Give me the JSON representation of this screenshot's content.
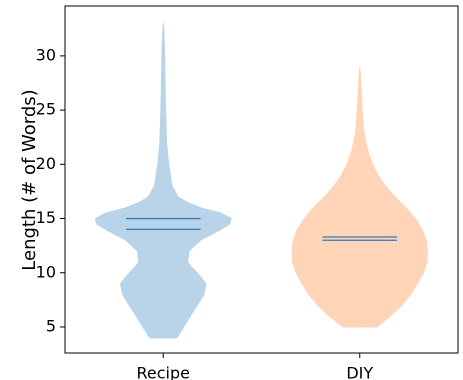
{
  "chart_data": {
    "type": "violin",
    "categories": [
      "Recipe",
      "DIY"
    ],
    "xlabel": "",
    "ylabel": "Length (# of Words)",
    "ylim": [
      2.6,
      34.6
    ],
    "yticks": [
      5,
      10,
      15,
      20,
      25,
      30
    ],
    "grid": false,
    "series": [
      {
        "category": "Recipe",
        "color": "#b9d3e8",
        "line_color": "#2f7ab9",
        "mean": 15.0,
        "median": 14.0,
        "min": 4.0,
        "max": 33.0,
        "profile": [
          [
            4.0,
            0.2
          ],
          [
            5.0,
            0.3
          ],
          [
            6.0,
            0.4
          ],
          [
            7.0,
            0.5
          ],
          [
            8.0,
            0.6
          ],
          [
            9.0,
            0.63
          ],
          [
            10.0,
            0.5
          ],
          [
            10.5,
            0.42
          ],
          [
            11.0,
            0.36
          ],
          [
            12.0,
            0.38
          ],
          [
            13.0,
            0.55
          ],
          [
            14.0,
            0.85
          ],
          [
            14.5,
            0.98
          ],
          [
            15.0,
            1.0
          ],
          [
            15.5,
            0.85
          ],
          [
            16.0,
            0.55
          ],
          [
            16.5,
            0.35
          ],
          [
            17.0,
            0.22
          ],
          [
            18.0,
            0.13
          ],
          [
            20.0,
            0.08
          ],
          [
            22.0,
            0.05
          ],
          [
            25.0,
            0.035
          ],
          [
            28.0,
            0.025
          ],
          [
            30.0,
            0.02
          ],
          [
            32.0,
            0.01
          ],
          [
            33.0,
            0.0
          ]
        ]
      },
      {
        "category": "DIY",
        "color": "#ffd4b7",
        "line_color": "#2f7ab9",
        "mean": 13.3,
        "median": 13.0,
        "min": 5.0,
        "max": 29.0,
        "profile": [
          [
            5.0,
            0.25
          ],
          [
            6.0,
            0.45
          ],
          [
            7.0,
            0.62
          ],
          [
            8.0,
            0.75
          ],
          [
            9.0,
            0.85
          ],
          [
            10.0,
            0.94
          ],
          [
            11.0,
            0.99
          ],
          [
            12.0,
            1.0
          ],
          [
            13.0,
            0.98
          ],
          [
            14.0,
            0.92
          ],
          [
            15.0,
            0.82
          ],
          [
            16.0,
            0.68
          ],
          [
            17.0,
            0.52
          ],
          [
            18.0,
            0.38
          ],
          [
            19.0,
            0.27
          ],
          [
            20.0,
            0.19
          ],
          [
            21.0,
            0.13
          ],
          [
            22.0,
            0.09
          ],
          [
            23.0,
            0.06
          ],
          [
            25.0,
            0.035
          ],
          [
            27.0,
            0.02
          ],
          [
            28.0,
            0.012
          ],
          [
            29.0,
            0.0
          ]
        ]
      }
    ]
  }
}
